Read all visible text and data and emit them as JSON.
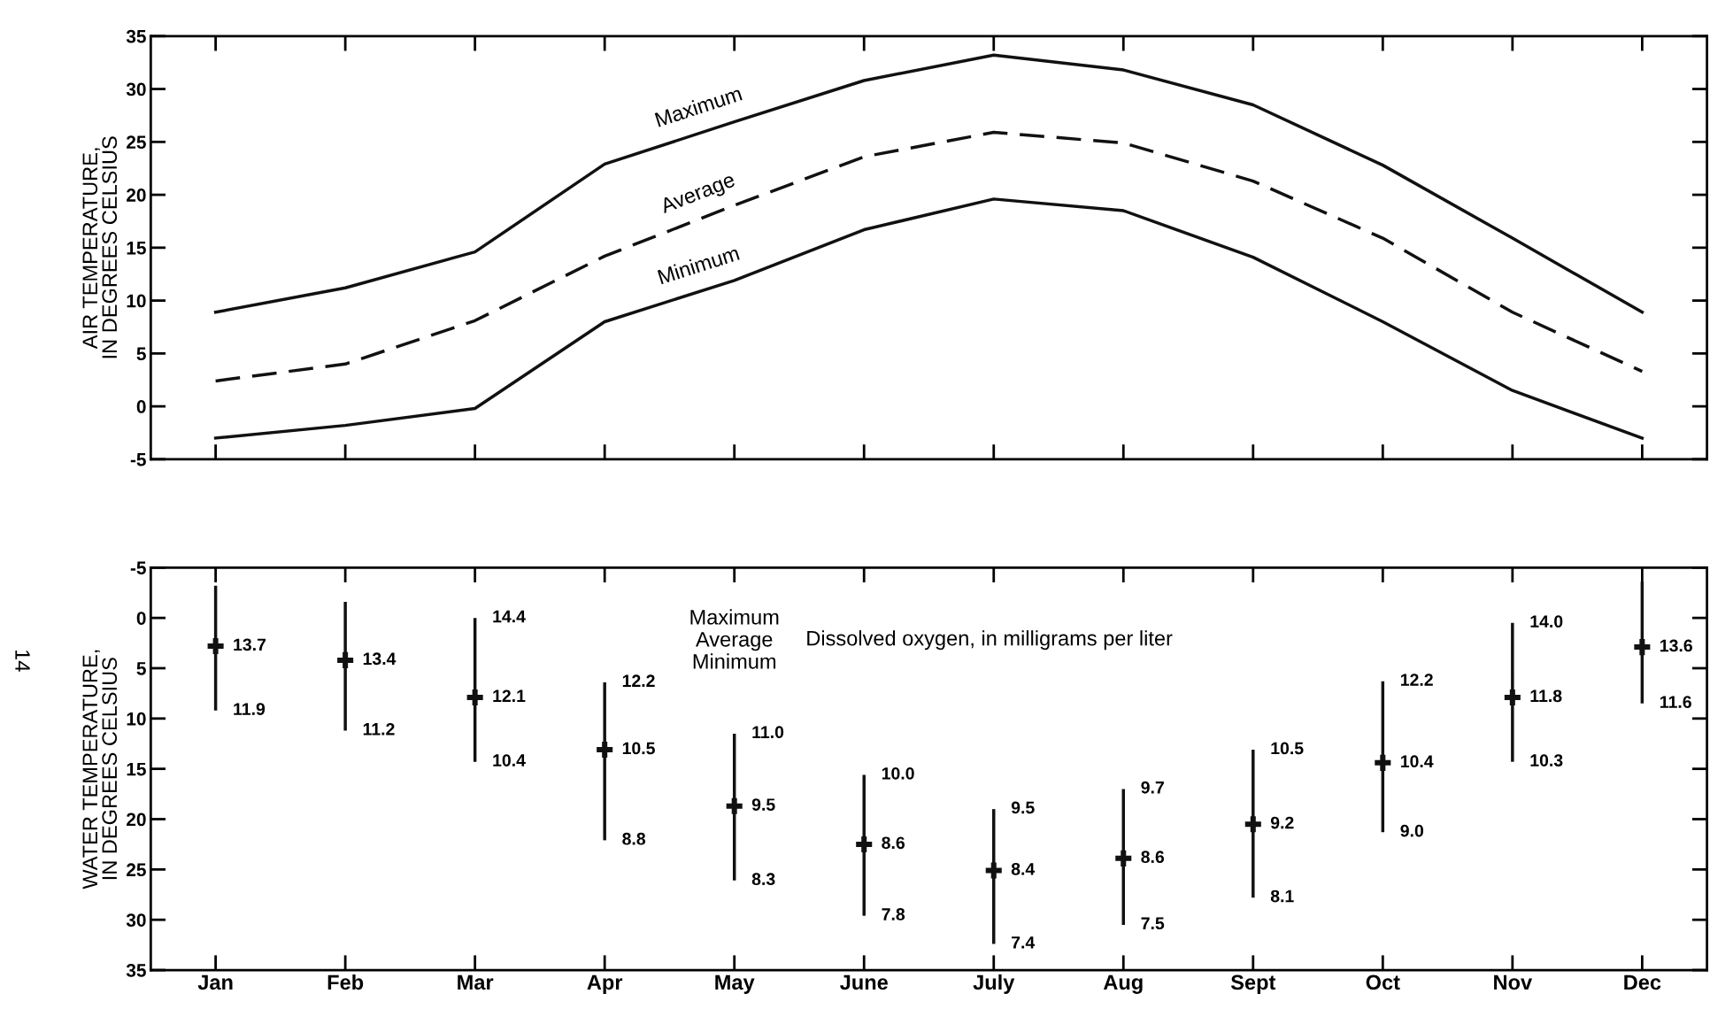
{
  "chart_data": [
    {
      "type": "line",
      "ylabel": "AIR TEMPERATURE,\nIN DEGREES CELSIUS",
      "categories": [
        null,
        null,
        null,
        null,
        null,
        null,
        null,
        null,
        null,
        null,
        null,
        null
      ],
      "series": [
        {
          "name": "Maximum",
          "color": "#111111",
          "line_style": "solid",
          "values": [
            8.9,
            11.2,
            14.6,
            22.9,
            26.9,
            30.8,
            33.2,
            31.8,
            28.5,
            22.8,
            15.9,
            8.9
          ]
        },
        {
          "name": "Average",
          "color": "#111111",
          "line_style": "dashed",
          "values": [
            2.4,
            4.0,
            8.1,
            14.2,
            19.0,
            23.6,
            25.9,
            24.9,
            21.3,
            15.9,
            8.9,
            3.3
          ]
        },
        {
          "name": "Minimum",
          "color": "#111111",
          "line_style": "solid",
          "values": [
            -3.0,
            -1.8,
            -0.2,
            8.0,
            11.9,
            16.7,
            19.6,
            18.5,
            14.1,
            8.0,
            1.5,
            -3.0
          ]
        }
      ],
      "ylim": [
        -5,
        35
      ],
      "yticks": [
        -5,
        0,
        5,
        10,
        15,
        20,
        25,
        30,
        35
      ],
      "tick_labels": "y",
      "grid": false,
      "marker": "none"
    },
    {
      "type": "scatter",
      "ylabel": "WATER TEMPERATURE,\nIN DEGREES CELSIUS",
      "categories": [
        "Jan",
        "Feb",
        "Mar",
        "Apr",
        "May",
        "June",
        "July",
        "Aug",
        "Sept",
        "Oct",
        "Nov",
        "Dec"
      ],
      "series": [
        {
          "color": "#111111",
          "values": [
            2.8,
            4.2,
            7.9,
            13.1,
            18.7,
            22.5,
            25.1,
            23.9,
            20.5,
            14.4,
            7.9,
            2.9
          ],
          "errors": [
            [
              -3.2,
              9.2
            ],
            [
              -1.6,
              11.2
            ],
            [
              0.0,
              14.3
            ],
            [
              6.4,
              22.1
            ],
            [
              11.5,
              26.1
            ],
            [
              15.6,
              29.6
            ],
            [
              19.0,
              32.4
            ],
            [
              17.0,
              30.5
            ],
            [
              13.1,
              27.8
            ],
            [
              6.3,
              21.3
            ],
            [
              0.5,
              14.3
            ],
            [
              -3.6,
              8.5
            ]
          ]
        }
      ],
      "ylim": [
        35,
        -5
      ],
      "yticks": [
        -5,
        0,
        5,
        10,
        15,
        20,
        25,
        30,
        35
      ],
      "grid": false,
      "marker": "cross",
      "annotations": [
        "Maximum",
        "Average",
        "Minimum",
        "Dissolved oxygen, in milligrams per liter",
        "14",
        {
          "text": "13.7",
          "x": "Jan",
          "y": 2.8
        },
        {
          "text": "11.9",
          "x": "Jan",
          "y": 9.2
        },
        {
          "text": "13.4",
          "x": "Feb",
          "y": 4.2
        },
        {
          "text": "11.2",
          "x": "Feb",
          "y": 11.2
        },
        {
          "text": "14.4",
          "x": "Mar",
          "y": 0.0
        },
        {
          "text": "12.1",
          "x": "Mar",
          "y": 7.9
        },
        {
          "text": "10.4",
          "x": "Mar",
          "y": 14.3
        },
        {
          "text": "12.2",
          "x": "Apr",
          "y": 6.4
        },
        {
          "text": "10.5",
          "x": "Apr",
          "y": 13.1
        },
        {
          "text": "8.8",
          "x": "Apr",
          "y": 22.1
        },
        {
          "text": "11.0",
          "x": "May",
          "y": 11.5
        },
        {
          "text": "9.5",
          "x": "May",
          "y": 18.7
        },
        {
          "text": "8.3",
          "x": "May",
          "y": 26.1
        },
        {
          "text": "10.0",
          "x": "June",
          "y": 15.6
        },
        {
          "text": "8.6",
          "x": "June",
          "y": 22.5
        },
        {
          "text": "7.8",
          "x": "June",
          "y": 29.6
        },
        {
          "text": "9.5",
          "x": "July",
          "y": 19.0
        },
        {
          "text": "8.4",
          "x": "July",
          "y": 25.1
        },
        {
          "text": "7.4",
          "x": "July",
          "y": 32.4
        },
        {
          "text": "9.7",
          "x": "Aug",
          "y": 17.0
        },
        {
          "text": "8.6",
          "x": "Aug",
          "y": 23.9
        },
        {
          "text": "7.5",
          "x": "Aug",
          "y": 30.5
        },
        {
          "text": "10.5",
          "x": "Sept",
          "y": 13.1
        },
        {
          "text": "9.2",
          "x": "Sept",
          "y": 20.5
        },
        {
          "text": "8.1",
          "x": "Sept",
          "y": 27.8
        },
        {
          "text": "12.2",
          "x": "Oct",
          "y": 6.3
        },
        {
          "text": "10.4",
          "x": "Oct",
          "y": 14.4
        },
        {
          "text": "9.0",
          "x": "Oct",
          "y": 21.3
        },
        {
          "text": "14.0",
          "x": "Nov",
          "y": 0.5
        },
        {
          "text": "11.8",
          "x": "Nov",
          "y": 7.9
        },
        {
          "text": "10.3",
          "x": "Nov",
          "y": 14.3
        },
        {
          "text": "13.6",
          "x": "Dec",
          "y": 2.9
        },
        {
          "text": "11.6",
          "x": "Dec",
          "y": 8.5
        }
      ]
    }
  ]
}
